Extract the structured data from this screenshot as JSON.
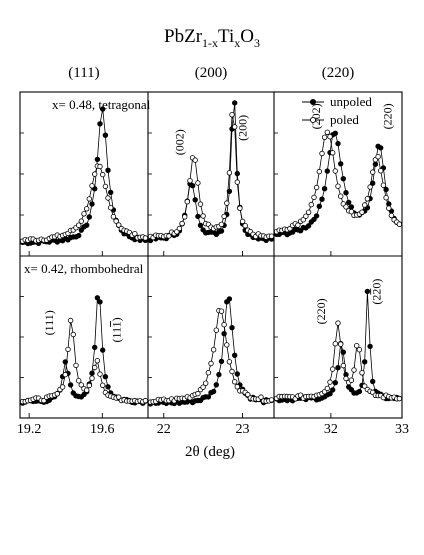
{
  "chart_data": {
    "type": "scatter",
    "title": {
      "base": "PbZr",
      "sub1": "1-x",
      "mid": "Ti",
      "sub2": "x",
      "end": "O",
      "sub3": "3"
    },
    "xlabel": "2θ (deg)",
    "column_titles": [
      "(111)",
      "(200)",
      "(220)"
    ],
    "legend": {
      "placement": "top-right",
      "entries": [
        {
          "label": "unpoled",
          "marker": "filled-circle"
        },
        {
          "label": "poled",
          "marker": "open-circle"
        }
      ]
    },
    "grid": false,
    "columns": [
      {
        "xlim": [
          19.15,
          19.85
        ],
        "ticks": [
          19.2,
          19.6
        ],
        "tick_labels": [
          "19.2",
          "19.6"
        ]
      },
      {
        "xlim": [
          21.8,
          23.4
        ],
        "ticks": [
          22,
          23
        ],
        "tick_labels": [
          "22",
          "23"
        ]
      },
      {
        "xlim": [
          31.2,
          33.0
        ],
        "ticks": [
          32,
          33
        ],
        "tick_labels": [
          "32",
          "33"
        ]
      }
    ],
    "panels": [
      {
        "row": 0,
        "col": 0,
        "note": "x= 0.48, tetragonal",
        "ylim": [
          0,
          1
        ],
        "series": [
          {
            "name": "unpoled",
            "peaks": [
              {
                "center": 19.6,
                "height": 0.93,
                "width": 0.035
              }
            ],
            "baseline": 0.02
          },
          {
            "name": "poled",
            "peaks": [
              {
                "center": 19.58,
                "height": 0.52,
                "width": 0.06
              }
            ],
            "baseline": 0.03
          }
        ],
        "peak_labels": []
      },
      {
        "row": 0,
        "col": 1,
        "ylim": [
          0,
          1
        ],
        "series": [
          {
            "name": "unpoled",
            "peaks": [
              {
                "center": 22.35,
                "height": 0.4,
                "width": 0.07
              },
              {
                "center": 22.89,
                "height": 1.02,
                "width": 0.04
              }
            ],
            "baseline": 0.04
          },
          {
            "name": "poled",
            "peaks": [
              {
                "center": 22.38,
                "height": 0.58,
                "width": 0.07
              },
              {
                "center": 22.88,
                "height": 0.92,
                "width": 0.045
              }
            ],
            "baseline": 0.05
          }
        ],
        "peak_labels": [
          {
            "text": "(002)",
            "x": 22.25,
            "y": 0.72
          },
          {
            "text": "(200)",
            "x": 23.05,
            "y": 0.82
          }
        ]
      },
      {
        "row": 0,
        "col": 2,
        "ylim": [
          0,
          1
        ],
        "series": [
          {
            "name": "unpoled",
            "peaks": [
              {
                "center": 32.05,
                "height": 0.72,
                "width": 0.13
              },
              {
                "center": 32.68,
                "height": 0.62,
                "width": 0.1
              }
            ],
            "baseline": 0.06
          },
          {
            "name": "poled",
            "peaks": [
              {
                "center": 31.95,
                "height": 0.7,
                "width": 0.14
              },
              {
                "center": 32.65,
                "height": 0.52,
                "width": 0.11
              }
            ],
            "baseline": 0.08
          }
        ],
        "peak_labels": [
          {
            "text": "(202)",
            "x": 31.85,
            "y": 0.9
          },
          {
            "text": "(220)",
            "x": 32.85,
            "y": 0.9
          }
        ]
      },
      {
        "row": 1,
        "col": 0,
        "note": "x= 0.42, rhombohedral",
        "ylim": [
          0,
          1
        ],
        "series": [
          {
            "name": "unpoled",
            "peaks": [
              {
                "center": 19.4,
                "height": 0.28,
                "width": 0.02
              },
              {
                "center": 19.58,
                "height": 0.82,
                "width": 0.02
              }
            ],
            "baseline": 0.04
          },
          {
            "name": "poled",
            "peaks": [
              {
                "center": 19.43,
                "height": 0.58,
                "width": 0.022
              },
              {
                "center": 19.57,
                "height": 0.28,
                "width": 0.025
              }
            ],
            "baseline": 0.05
          }
        ],
        "peak_labels": [
          {
            "text": "(111)",
            "x": 19.33,
            "y": 0.6
          },
          {
            "text": "(111)",
            "x": 19.7,
            "y": 0.55,
            "overbar": "1"
          }
        ]
      },
      {
        "row": 1,
        "col": 1,
        "ylim": [
          0,
          1
        ],
        "series": [
          {
            "name": "unpoled",
            "peaks": [
              {
                "center": 22.82,
                "height": 0.78,
                "width": 0.07
              }
            ],
            "baseline": 0.03
          },
          {
            "name": "poled",
            "peaks": [
              {
                "center": 22.72,
                "height": 0.66,
                "width": 0.1
              }
            ],
            "baseline": 0.04
          }
        ],
        "peak_labels": []
      },
      {
        "row": 1,
        "col": 2,
        "ylim": [
          0,
          1
        ],
        "series": [
          {
            "name": "unpoled",
            "peaks": [
              {
                "center": 32.15,
                "height": 0.42,
                "width": 0.05
              },
              {
                "center": 32.52,
                "height": 0.78,
                "width": 0.03
              }
            ],
            "baseline": 0.06
          },
          {
            "name": "poled",
            "peaks": [
              {
                "center": 32.1,
                "height": 0.52,
                "width": 0.06
              },
              {
                "center": 32.38,
                "height": 0.38,
                "width": 0.05
              }
            ],
            "baseline": 0.07
          }
        ],
        "peak_labels": [
          {
            "text": "(220)",
            "x": 31.92,
            "y": 0.68
          },
          {
            "text": "(220)",
            "x": 32.7,
            "y": 0.82,
            "overbar": "2"
          }
        ]
      }
    ]
  }
}
